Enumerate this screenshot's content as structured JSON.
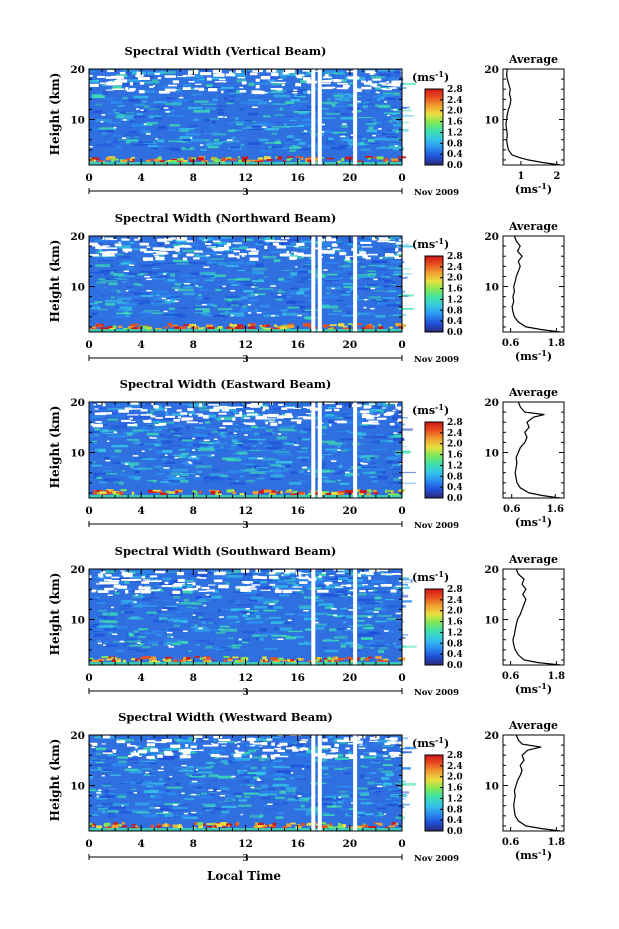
{
  "figure": {
    "xlabel": "Local Time",
    "date_label": "Nov 2009",
    "day_label": "3",
    "ylabel": "Height (km)",
    "colorbar_unit_base": "(ms",
    "colorbar_unit_exp": "-1",
    "colorbar_unit_close": ")",
    "avg_title": "Average"
  },
  "colors": {
    "colormap": [
      "#2a2a78",
      "#1f4fd8",
      "#2c8df0",
      "#35c4e8",
      "#3de0b0",
      "#7ce858",
      "#e8e040",
      "#f0a030",
      "#e85020",
      "#d01818"
    ],
    "background_field": "#2f6fe0",
    "trace": "#000000"
  },
  "chart_data": [
    {
      "type": "heatmap",
      "title": "Spectral Width (Vertical Beam)",
      "x_ticks": [
        "0",
        "4",
        "8",
        "12",
        "16",
        "20",
        "0"
      ],
      "x_values": [
        0,
        4,
        8,
        12,
        16,
        20,
        24
      ],
      "xlim": [
        0,
        24
      ],
      "y_ticks": [
        "20",
        "10"
      ],
      "y_values": [
        20,
        10
      ],
      "ylim": [
        1,
        20
      ],
      "colorbar_ticks": [
        "2.8",
        "2.4",
        "2.0",
        "1.6",
        "1.2",
        "0.8",
        "0.4",
        "0.0"
      ],
      "colorbar_values": [
        2.8,
        2.4,
        2.0,
        1.6,
        1.2,
        0.8,
        0.4,
        0.0
      ],
      "colorbar_range": [
        0,
        2.8
      ],
      "gap_hours": [
        17.2,
        17.7,
        20.4
      ],
      "average": {
        "x_ticks": [
          "1",
          "2"
        ],
        "x_tick_values": [
          1,
          2
        ],
        "xlim": [
          0.5,
          2.2
        ],
        "y_ticks": [
          "20",
          "10"
        ],
        "profile": [
          [
            2.1,
            1
          ],
          [
            1.6,
            1.5
          ],
          [
            1.2,
            2
          ],
          [
            0.95,
            2.5
          ],
          [
            0.75,
            3
          ],
          [
            0.65,
            4
          ],
          [
            0.62,
            5
          ],
          [
            0.6,
            6
          ],
          [
            0.62,
            7
          ],
          [
            0.6,
            8
          ],
          [
            0.58,
            9
          ],
          [
            0.6,
            10
          ],
          [
            0.62,
            11
          ],
          [
            0.65,
            12
          ],
          [
            0.7,
            13
          ],
          [
            0.72,
            14
          ],
          [
            0.68,
            15
          ],
          [
            0.7,
            16
          ],
          [
            0.66,
            17
          ],
          [
            0.62,
            18
          ],
          [
            0.6,
            19
          ],
          [
            0.62,
            20
          ]
        ]
      }
    },
    {
      "type": "heatmap",
      "title": "Spectral Width (Northward Beam)",
      "x_ticks": [
        "0",
        "4",
        "8",
        "12",
        "16",
        "20",
        "0"
      ],
      "x_values": [
        0,
        4,
        8,
        12,
        16,
        20,
        24
      ],
      "xlim": [
        0,
        24
      ],
      "y_ticks": [
        "20",
        "10"
      ],
      "y_values": [
        20,
        10
      ],
      "ylim": [
        1,
        20
      ],
      "colorbar_ticks": [
        "2.8",
        "2.4",
        "2.0",
        "1.6",
        "1.2",
        "0.8",
        "0.4",
        "0.0"
      ],
      "colorbar_values": [
        2.8,
        2.4,
        2.0,
        1.6,
        1.2,
        0.8,
        0.4,
        0.0
      ],
      "colorbar_range": [
        0,
        2.8
      ],
      "gap_hours": [
        17.2,
        17.7,
        20.4
      ],
      "average": {
        "x_ticks": [
          "0.6",
          "1.8"
        ],
        "x_tick_values": [
          0.6,
          1.8
        ],
        "xlim": [
          0.4,
          2.0
        ],
        "y_ticks": [
          "20",
          "10"
        ],
        "profile": [
          [
            1.9,
            1
          ],
          [
            1.4,
            1.5
          ],
          [
            1.0,
            2
          ],
          [
            0.8,
            3
          ],
          [
            0.7,
            4
          ],
          [
            0.66,
            5
          ],
          [
            0.64,
            6
          ],
          [
            0.68,
            7
          ],
          [
            0.66,
            8
          ],
          [
            0.7,
            9
          ],
          [
            0.68,
            10
          ],
          [
            0.72,
            11
          ],
          [
            0.75,
            12
          ],
          [
            0.8,
            13
          ],
          [
            0.85,
            14
          ],
          [
            0.8,
            15
          ],
          [
            0.9,
            16
          ],
          [
            0.78,
            17
          ],
          [
            0.85,
            18
          ],
          [
            0.75,
            19
          ],
          [
            0.7,
            20
          ]
        ]
      }
    },
    {
      "type": "heatmap",
      "title": "Spectral Width (Eastward Beam)",
      "x_ticks": [
        "0",
        "4",
        "8",
        "12",
        "16",
        "20",
        "0"
      ],
      "x_values": [
        0,
        4,
        8,
        12,
        16,
        20,
        24
      ],
      "xlim": [
        0,
        24
      ],
      "y_ticks": [
        "20",
        "10"
      ],
      "y_values": [
        20,
        10
      ],
      "ylim": [
        1,
        20
      ],
      "colorbar_ticks": [
        "2.8",
        "2.4",
        "2.0",
        "1.6",
        "1.2",
        "0.8",
        "0.4",
        "0.0"
      ],
      "colorbar_values": [
        2.8,
        2.4,
        2.0,
        1.6,
        1.2,
        0.8,
        0.4,
        0.0
      ],
      "colorbar_range": [
        0,
        2.8
      ],
      "gap_hours": [
        17.2,
        17.7,
        20.4
      ],
      "average": {
        "x_ticks": [
          "0.6",
          "1.6"
        ],
        "x_tick_values": [
          0.6,
          1.6
        ],
        "xlim": [
          0.4,
          1.8
        ],
        "y_ticks": [
          "20",
          "10"
        ],
        "profile": [
          [
            1.7,
            1
          ],
          [
            1.3,
            1.5
          ],
          [
            1.0,
            2
          ],
          [
            0.8,
            3
          ],
          [
            0.72,
            4
          ],
          [
            0.7,
            5
          ],
          [
            0.68,
            6
          ],
          [
            0.7,
            7
          ],
          [
            0.72,
            8
          ],
          [
            0.7,
            9
          ],
          [
            0.75,
            10
          ],
          [
            0.8,
            11
          ],
          [
            0.9,
            12
          ],
          [
            0.95,
            13
          ],
          [
            0.9,
            14
          ],
          [
            1.0,
            15
          ],
          [
            0.95,
            16
          ],
          [
            1.1,
            17
          ],
          [
            1.35,
            17.5
          ],
          [
            0.9,
            18
          ],
          [
            0.8,
            19
          ],
          [
            0.75,
            20
          ]
        ]
      }
    },
    {
      "type": "heatmap",
      "title": "Spectral Width (Southward Beam)",
      "x_ticks": [
        "0",
        "4",
        "8",
        "12",
        "16",
        "20",
        "0"
      ],
      "x_values": [
        0,
        4,
        8,
        12,
        16,
        20,
        24
      ],
      "xlim": [
        0,
        24
      ],
      "y_ticks": [
        "20",
        "10"
      ],
      "y_values": [
        20,
        10
      ],
      "ylim": [
        1,
        20
      ],
      "colorbar_ticks": [
        "2.8",
        "2.4",
        "2.0",
        "1.6",
        "1.2",
        "0.8",
        "0.4",
        "0.0"
      ],
      "colorbar_values": [
        2.8,
        2.4,
        2.0,
        1.6,
        1.2,
        0.8,
        0.4,
        0.0
      ],
      "colorbar_range": [
        0,
        2.8
      ],
      "gap_hours": [
        17.2,
        20.4
      ],
      "average": {
        "x_ticks": [
          "0.6",
          "1.8"
        ],
        "x_tick_values": [
          0.6,
          1.8
        ],
        "xlim": [
          0.4,
          2.0
        ],
        "y_ticks": [
          "20",
          "10"
        ],
        "profile": [
          [
            1.9,
            1
          ],
          [
            1.3,
            1.5
          ],
          [
            0.95,
            2
          ],
          [
            0.8,
            3
          ],
          [
            0.72,
            4
          ],
          [
            0.68,
            5
          ],
          [
            0.66,
            6
          ],
          [
            0.7,
            7
          ],
          [
            0.72,
            8
          ],
          [
            0.75,
            9
          ],
          [
            0.78,
            10
          ],
          [
            0.85,
            11
          ],
          [
            0.9,
            12
          ],
          [
            0.95,
            13
          ],
          [
            1.0,
            14
          ],
          [
            0.92,
            15
          ],
          [
            1.0,
            16
          ],
          [
            0.9,
            17
          ],
          [
            0.95,
            18
          ],
          [
            0.8,
            19
          ],
          [
            0.75,
            20
          ]
        ]
      }
    },
    {
      "type": "heatmap",
      "title": "Spectral Width (Westward Beam)",
      "x_ticks": [
        "0",
        "4",
        "8",
        "12",
        "16",
        "20",
        "0"
      ],
      "x_values": [
        0,
        4,
        8,
        12,
        16,
        20,
        24
      ],
      "xlim": [
        0,
        24
      ],
      "y_ticks": [
        "20",
        "10"
      ],
      "y_values": [
        20,
        10
      ],
      "ylim": [
        1,
        20
      ],
      "colorbar_ticks": [
        "2.8",
        "2.4",
        "2.0",
        "1.6",
        "1.2",
        "0.8",
        "0.4",
        "0.0"
      ],
      "colorbar_values": [
        2.8,
        2.4,
        2.0,
        1.6,
        1.2,
        0.8,
        0.4,
        0.0
      ],
      "colorbar_range": [
        0,
        2.8
      ],
      "gap_hours": [
        17.2,
        17.7,
        20.4
      ],
      "average": {
        "x_ticks": [
          "0.6",
          "1.8"
        ],
        "x_tick_values": [
          0.6,
          1.8
        ],
        "xlim": [
          0.4,
          2.0
        ],
        "y_ticks": [
          "20",
          "10"
        ],
        "profile": [
          [
            1.9,
            1
          ],
          [
            1.4,
            1.5
          ],
          [
            1.0,
            2
          ],
          [
            0.8,
            3
          ],
          [
            0.72,
            4
          ],
          [
            0.7,
            5
          ],
          [
            0.68,
            6
          ],
          [
            0.7,
            7
          ],
          [
            0.72,
            8
          ],
          [
            0.7,
            9
          ],
          [
            0.74,
            10
          ],
          [
            0.78,
            11
          ],
          [
            0.85,
            12
          ],
          [
            0.9,
            13
          ],
          [
            0.85,
            14
          ],
          [
            0.95,
            15
          ],
          [
            0.9,
            16
          ],
          [
            1.05,
            17
          ],
          [
            1.4,
            17.6
          ],
          [
            0.9,
            18.2
          ],
          [
            0.8,
            19
          ],
          [
            0.75,
            20
          ]
        ]
      }
    }
  ]
}
